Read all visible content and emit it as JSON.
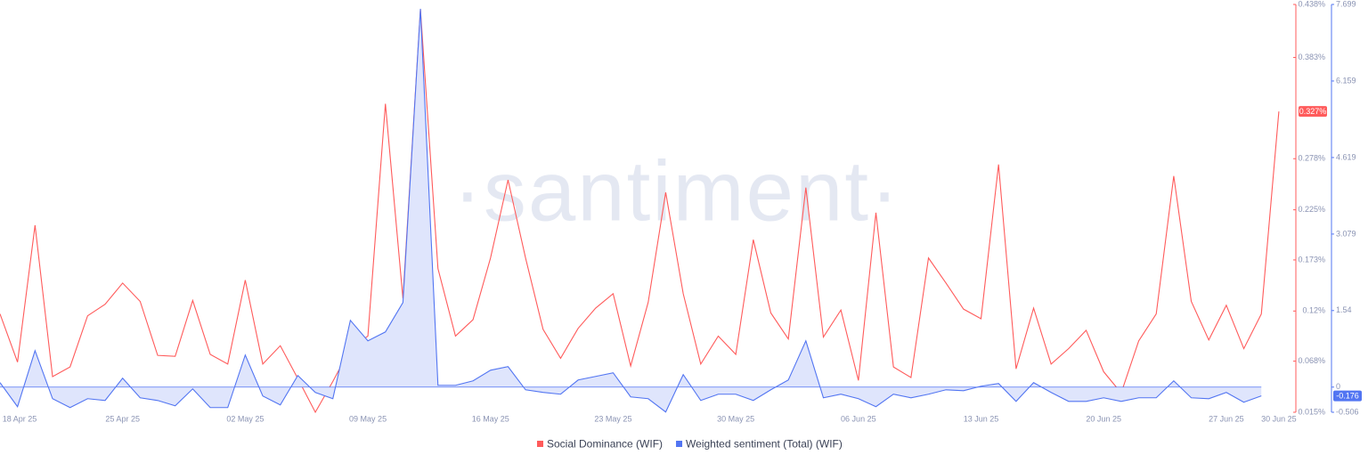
{
  "chart_data": {
    "type": "line",
    "watermark": "·santiment·",
    "categories": [
      "18 Apr 25",
      null,
      null,
      null,
      null,
      null,
      null,
      "25 Apr 25",
      null,
      null,
      null,
      null,
      null,
      null,
      "02 May 25",
      null,
      null,
      null,
      null,
      null,
      null,
      "09 May 25",
      null,
      null,
      null,
      null,
      null,
      null,
      "16 May 25",
      null,
      null,
      null,
      null,
      null,
      null,
      "23 May 25",
      null,
      null,
      null,
      null,
      null,
      null,
      "30 May 25",
      null,
      null,
      null,
      null,
      null,
      null,
      "06 Jun 25",
      null,
      null,
      null,
      null,
      null,
      null,
      "13 Jun 25",
      null,
      null,
      null,
      null,
      null,
      null,
      "20 Jun 25",
      null,
      null,
      null,
      null,
      null,
      null,
      "27 Jun 25",
      null,
      null,
      "30 Jun 25"
    ],
    "series": [
      {
        "name": "Social Dominance (WIF)",
        "color": "#ff5b5b",
        "axis": "y",
        "values": [
          0.117,
          0.067,
          0.209,
          0.052,
          0.062,
          0.115,
          0.127,
          0.149,
          0.13,
          0.074,
          0.073,
          0.131,
          0.075,
          0.065,
          0.152,
          0.065,
          0.084,
          0.05,
          0.015,
          0.047,
          0.081,
          0.094,
          0.335,
          0.133,
          0.433,
          0.164,
          0.094,
          0.111,
          0.175,
          0.256,
          0.175,
          0.101,
          0.071,
          0.102,
          0.123,
          0.138,
          0.063,
          0.129,
          0.243,
          0.138,
          0.065,
          0.094,
          0.075,
          0.194,
          0.118,
          0.091,
          0.248,
          0.093,
          0.121,
          0.048,
          0.222,
          0.062,
          0.051,
          0.175,
          0.149,
          0.122,
          0.112,
          0.272,
          0.06,
          0.123,
          0.065,
          0.081,
          0.1,
          0.057,
          0.035,
          0.089,
          0.117,
          0.26,
          0.13,
          0.09,
          0.126,
          0.081,
          0.117,
          0.327
        ],
        "last_value_label": "0.327%"
      },
      {
        "name": "Weighted sentiment (Total) (WIF)",
        "color": "#5275f2",
        "axis": "y2",
        "fill": "#dfe5fc",
        "values": [
          0.09,
          -0.394,
          0.734,
          -0.233,
          -0.412,
          -0.233,
          -0.269,
          0.179,
          -0.215,
          -0.269,
          -0.376,
          -0.036,
          -0.412,
          -0.412,
          0.645,
          -0.179,
          -0.358,
          0.233,
          -0.107,
          -0.233,
          1.343,
          0.931,
          1.11,
          1.701,
          7.611,
          0.036,
          0.036,
          0.125,
          0.34,
          0.412,
          -0.054,
          -0.107,
          -0.143,
          0.143,
          0.215,
          0.287,
          -0.197,
          -0.233,
          -0.501,
          0.251,
          -0.269,
          -0.143,
          -0.143,
          -0.269,
          -0.054,
          0.143,
          0.931,
          -0.215,
          -0.143,
          -0.233,
          -0.394,
          -0.143,
          -0.215,
          -0.143,
          -0.054,
          -0.072,
          0.018,
          0.072,
          -0.287,
          0.09,
          -0.107,
          -0.287,
          -0.287,
          -0.215,
          -0.287,
          -0.215,
          -0.215,
          0.125,
          -0.215,
          -0.233,
          -0.107,
          -0.304,
          -0.176,
          null
        ],
        "last_value_label": "-0.176"
      }
    ],
    "ylim": [
      0.015,
      0.438
    ],
    "yticks": [
      {
        "value": 0.438,
        "label": "0.438%"
      },
      {
        "value": 0.383,
        "label": "0.383%"
      },
      {
        "value": 0.278,
        "label": "0.278%"
      },
      {
        "value": 0.225,
        "label": "0.225%"
      },
      {
        "value": 0.173,
        "label": "0.173%"
      },
      {
        "value": 0.12,
        "label": "0.12%"
      },
      {
        "value": 0.068,
        "label": "0.068%"
      },
      {
        "value": 0.015,
        "label": "0.015%"
      }
    ],
    "y2lim": [
      -0.506,
      7.699
    ],
    "y2ticks": [
      7.699,
      6.159,
      4.619,
      3.079,
      1.54,
      0,
      -0.506
    ],
    "legend": "bottom"
  }
}
